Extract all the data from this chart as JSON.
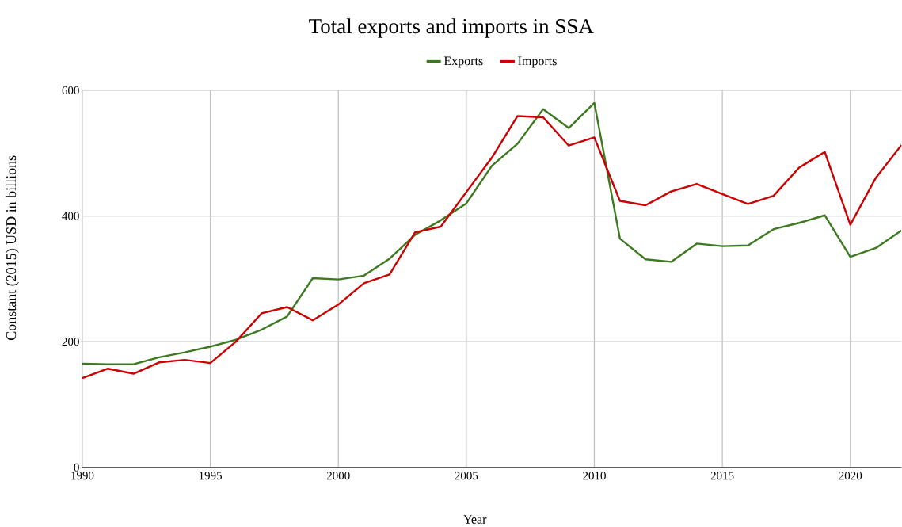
{
  "chart_data": {
    "type": "line",
    "title": "Total exports and imports in SSA",
    "xlabel": "Year",
    "ylabel": "Constant (2015) USD in billions",
    "x": [
      1990,
      1991,
      1992,
      1993,
      1994,
      1995,
      1996,
      1997,
      1998,
      1999,
      2000,
      2001,
      2002,
      2003,
      2004,
      2005,
      2006,
      2007,
      2008,
      2009,
      2010,
      2011,
      2012,
      2013,
      2014,
      2015,
      2016,
      2017,
      2018,
      2019,
      2020,
      2021,
      2022
    ],
    "series": [
      {
        "name": "Exports",
        "color": "#3d7a1f",
        "values": [
          165,
          164,
          164,
          175,
          183,
          192,
          203,
          219,
          240,
          301,
          299,
          305,
          332,
          370,
          393,
          420,
          480,
          515,
          570,
          540,
          580,
          364,
          331,
          327,
          356,
          352,
          353,
          379,
          389,
          401,
          335,
          349,
          377
        ]
      },
      {
        "name": "Imports",
        "color": "#cc0000",
        "values": [
          142,
          157,
          149,
          167,
          171,
          166,
          200,
          245,
          255,
          234,
          259,
          293,
          307,
          374,
          383,
          438,
          493,
          559,
          557,
          512,
          525,
          424,
          417,
          439,
          451,
          435,
          419,
          432,
          477,
          502,
          386,
          461,
          513
        ]
      }
    ],
    "xlim": [
      1990,
      2022
    ],
    "ylim": [
      0,
      600
    ],
    "xticks": [
      1990,
      1995,
      2000,
      2005,
      2010,
      2015,
      2020
    ],
    "yticks": [
      0,
      200,
      400,
      600
    ],
    "grid": true,
    "legend": "top",
    "marker": "none",
    "line_style": "solid"
  }
}
